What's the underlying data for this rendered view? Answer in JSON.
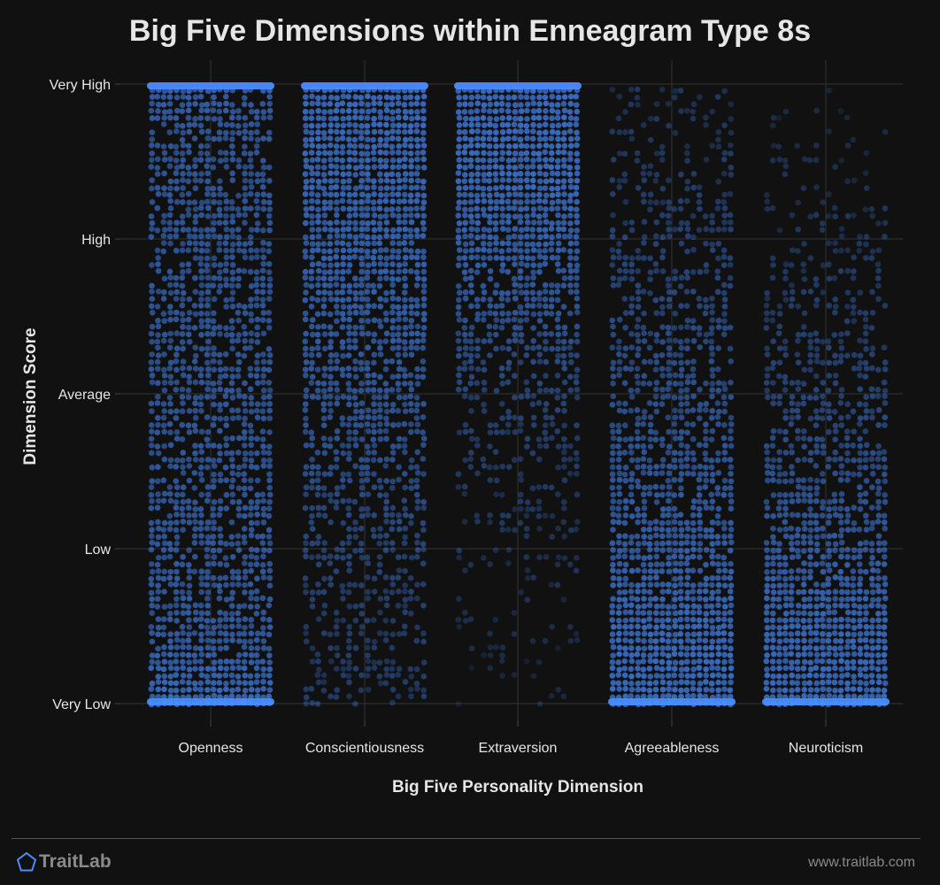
{
  "chart_data": {
    "type": "scatter",
    "title": "Big Five Dimensions within Enneagram Type 8s",
    "xlabel": "Big Five Personality Dimension",
    "ylabel": "Dimension Score",
    "categories": [
      "Openness",
      "Conscientiousness",
      "Extraversion",
      "Agreeableness",
      "Neuroticism"
    ],
    "y_tick_labels": [
      "Very Low",
      "Low",
      "Average",
      "High",
      "Very High"
    ],
    "ylim": [
      0,
      4
    ],
    "grid": true,
    "point_color": "#4a8dff",
    "background": "#111111",
    "series": [
      {
        "name": "Openness",
        "density_profile": [
          [
            0,
            1.0
          ],
          [
            0.5,
            0.75
          ],
          [
            1,
            0.72
          ],
          [
            2,
            0.7
          ],
          [
            3,
            0.68
          ],
          [
            3.6,
            0.7
          ],
          [
            4,
            0.85
          ]
        ]
      },
      {
        "name": "Conscientiousness",
        "density_profile": [
          [
            0,
            0.3
          ],
          [
            0.5,
            0.35
          ],
          [
            1,
            0.45
          ],
          [
            2,
            0.7
          ],
          [
            3,
            0.85
          ],
          [
            3.6,
            0.95
          ],
          [
            4,
            1.0
          ]
        ]
      },
      {
        "name": "Extraversion",
        "density_profile": [
          [
            0,
            0.05
          ],
          [
            0.5,
            0.12
          ],
          [
            1,
            0.22
          ],
          [
            1.5,
            0.3
          ],
          [
            2,
            0.45
          ],
          [
            2.5,
            0.65
          ],
          [
            3,
            0.85
          ],
          [
            3.5,
            1.0
          ],
          [
            4,
            1.0
          ]
        ]
      },
      {
        "name": "Agreeableness",
        "density_profile": [
          [
            0,
            1.0
          ],
          [
            0.5,
            0.95
          ],
          [
            1,
            0.8
          ],
          [
            2,
            0.6
          ],
          [
            3,
            0.4
          ],
          [
            3.5,
            0.3
          ],
          [
            4,
            0.22
          ]
        ]
      },
      {
        "name": "Neuroticism",
        "density_profile": [
          [
            0,
            1.0
          ],
          [
            0.5,
            0.92
          ],
          [
            1,
            0.75
          ],
          [
            2,
            0.45
          ],
          [
            3,
            0.25
          ],
          [
            3.5,
            0.14
          ],
          [
            4,
            0.05
          ]
        ]
      }
    ]
  },
  "footer": {
    "brand": "TraitLab",
    "url": "www.traitlab.com"
  }
}
